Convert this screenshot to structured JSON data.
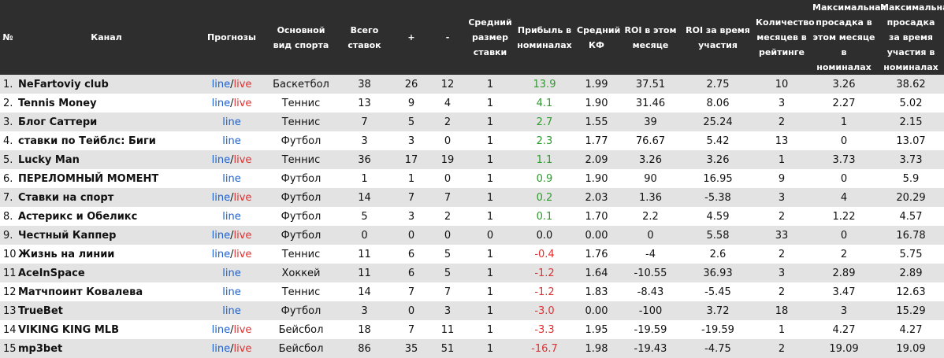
{
  "header": {
    "num": "№",
    "channel": "Канал",
    "forecasts": "Прогнозы",
    "sport": "Основной вид спорта",
    "total_bets": "Всего ставок",
    "plus": "+",
    "minus": "-",
    "avg_stake": "Средний размер ставки",
    "profit": "Прибыль в номиналах",
    "avg_kf": "Средний КФ",
    "roi_month": "ROI в этом месяце",
    "roi_total": "ROI за время участия",
    "months": "Количество месяцев в рейтинге",
    "dd_month": "Максимальная просадка в этом месяце в номиналах",
    "dd_total": "Максимальная просадка за время участия в номиналах"
  },
  "labels": {
    "line": "line",
    "slash": "/",
    "live": "live"
  },
  "colors": {
    "header_bg": "#2e2e2e",
    "row_alt": "#e3e3e3",
    "line": "#1a5fd4",
    "live": "#e03030",
    "positive": "#2e9a2e",
    "negative": "#e03030"
  },
  "rows": [
    {
      "num": "1.",
      "channel": "NeFartoviy club",
      "live": true,
      "sport": "Баскетбол",
      "total": "38",
      "plus": "26",
      "minus": "12",
      "avg": "1",
      "profit": "13.9",
      "sign": "pos",
      "kf": "1.99",
      "roi_m": "37.51",
      "roi_t": "2.75",
      "months": "10",
      "dd_m": "3.26",
      "dd_t": "38.62"
    },
    {
      "num": "2.",
      "channel": "Tennis Money",
      "live": true,
      "sport": "Теннис",
      "total": "13",
      "plus": "9",
      "minus": "4",
      "avg": "1",
      "profit": "4.1",
      "sign": "pos",
      "kf": "1.90",
      "roi_m": "31.46",
      "roi_t": "8.06",
      "months": "3",
      "dd_m": "2.27",
      "dd_t": "5.02"
    },
    {
      "num": "3.",
      "channel": "Блог Саттери",
      "live": false,
      "sport": "Теннис",
      "total": "7",
      "plus": "5",
      "minus": "2",
      "avg": "1",
      "profit": "2.7",
      "sign": "pos",
      "kf": "1.55",
      "roi_m": "39",
      "roi_t": "25.24",
      "months": "2",
      "dd_m": "1",
      "dd_t": "2.15"
    },
    {
      "num": "4.",
      "channel": "ставки по Тейблс: Биги",
      "live": false,
      "sport": "Футбол",
      "total": "3",
      "plus": "3",
      "minus": "0",
      "avg": "1",
      "profit": "2.3",
      "sign": "pos",
      "kf": "1.77",
      "roi_m": "76.67",
      "roi_t": "5.42",
      "months": "13",
      "dd_m": "0",
      "dd_t": "13.07"
    },
    {
      "num": "5.",
      "channel": "Lucky Man",
      "live": true,
      "sport": "Теннис",
      "total": "36",
      "plus": "17",
      "minus": "19",
      "avg": "1",
      "profit": "1.1",
      "sign": "pos",
      "kf": "2.09",
      "roi_m": "3.26",
      "roi_t": "3.26",
      "months": "1",
      "dd_m": "3.73",
      "dd_t": "3.73"
    },
    {
      "num": "6.",
      "channel": "ПЕРЕЛОМНЫЙ МОМЕНТ",
      "live": false,
      "sport": "Футбол",
      "total": "1",
      "plus": "1",
      "minus": "0",
      "avg": "1",
      "profit": "0.9",
      "sign": "pos",
      "kf": "1.90",
      "roi_m": "90",
      "roi_t": "16.95",
      "months": "9",
      "dd_m": "0",
      "dd_t": "5.9"
    },
    {
      "num": "7.",
      "channel": "Ставки на спорт",
      "live": true,
      "sport": "Футбол",
      "total": "14",
      "plus": "7",
      "minus": "7",
      "avg": "1",
      "profit": "0.2",
      "sign": "pos",
      "kf": "2.03",
      "roi_m": "1.36",
      "roi_t": "-5.38",
      "months": "3",
      "dd_m": "4",
      "dd_t": "20.29"
    },
    {
      "num": "8.",
      "channel": "Астерикс и Обеликс",
      "live": false,
      "sport": "Футбол",
      "total": "5",
      "plus": "3",
      "minus": "2",
      "avg": "1",
      "profit": "0.1",
      "sign": "pos",
      "kf": "1.70",
      "roi_m": "2.2",
      "roi_t": "4.59",
      "months": "2",
      "dd_m": "1.22",
      "dd_t": "4.57"
    },
    {
      "num": "9.",
      "channel": "Честный Каппер",
      "live": true,
      "sport": "Футбол",
      "total": "0",
      "plus": "0",
      "minus": "0",
      "avg": "0",
      "profit": "0.0",
      "sign": "zero",
      "kf": "0.00",
      "roi_m": "0",
      "roi_t": "5.58",
      "months": "33",
      "dd_m": "0",
      "dd_t": "16.78"
    },
    {
      "num": "10.",
      "channel": "Жизнь на линии",
      "live": true,
      "sport": "Теннис",
      "total": "11",
      "plus": "6",
      "minus": "5",
      "avg": "1",
      "profit": "-0.4",
      "sign": "neg",
      "kf": "1.76",
      "roi_m": "-4",
      "roi_t": "2.6",
      "months": "2",
      "dd_m": "2",
      "dd_t": "5.75"
    },
    {
      "num": "11.",
      "channel": "AceInSpace",
      "live": false,
      "sport": "Хоккей",
      "total": "11",
      "plus": "6",
      "minus": "5",
      "avg": "1",
      "profit": "-1.2",
      "sign": "neg",
      "kf": "1.64",
      "roi_m": "-10.55",
      "roi_t": "36.93",
      "months": "3",
      "dd_m": "2.89",
      "dd_t": "2.89"
    },
    {
      "num": "12.",
      "channel": "Матчпоинт Ковалева",
      "live": false,
      "sport": "Теннис",
      "total": "14",
      "plus": "7",
      "minus": "7",
      "avg": "1",
      "profit": "-1.2",
      "sign": "neg",
      "kf": "1.83",
      "roi_m": "-8.43",
      "roi_t": "-5.45",
      "months": "2",
      "dd_m": "3.47",
      "dd_t": "12.63"
    },
    {
      "num": "13.",
      "channel": "TrueBet",
      "live": false,
      "sport": "Футбол",
      "total": "3",
      "plus": "0",
      "minus": "3",
      "avg": "1",
      "profit": "-3.0",
      "sign": "neg",
      "kf": "0.00",
      "roi_m": "-100",
      "roi_t": "3.72",
      "months": "18",
      "dd_m": "3",
      "dd_t": "15.29"
    },
    {
      "num": "14.",
      "channel": "VIKING KING MLB",
      "live": true,
      "sport": "Бейсбол",
      "total": "18",
      "plus": "7",
      "minus": "11",
      "avg": "1",
      "profit": "-3.3",
      "sign": "neg",
      "kf": "1.95",
      "roi_m": "-19.59",
      "roi_t": "-19.59",
      "months": "1",
      "dd_m": "4.27",
      "dd_t": "4.27"
    },
    {
      "num": "15.",
      "channel": "mp3bet",
      "live": true,
      "sport": "Бейсбол",
      "total": "86",
      "plus": "35",
      "minus": "51",
      "avg": "1",
      "profit": "-16.7",
      "sign": "neg",
      "kf": "1.98",
      "roi_m": "-19.43",
      "roi_t": "-4.75",
      "months": "2",
      "dd_m": "19.09",
      "dd_t": "19.09"
    }
  ]
}
